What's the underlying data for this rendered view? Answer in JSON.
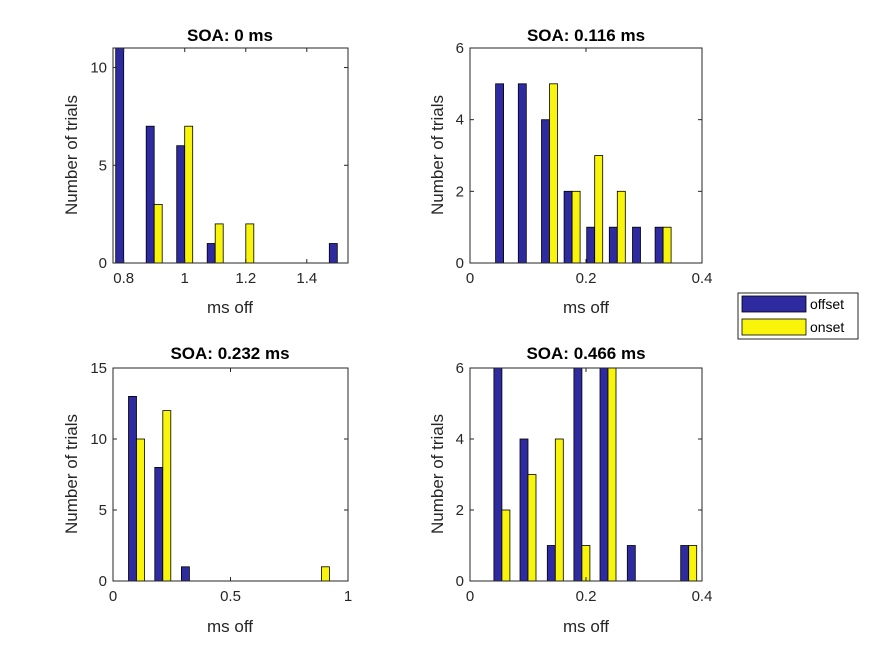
{
  "chart_data": [
    {
      "type": "bar",
      "title": "SOA: 0 ms",
      "xlabel": "ms off",
      "ylabel": "Number of trials",
      "xlim": [
        0.765,
        1.535
      ],
      "ylim": [
        0,
        11
      ],
      "xticks": [
        0.8,
        1,
        1.2,
        1.4
      ],
      "xtick_labels": [
        "0.8",
        "1",
        "1.2",
        "1.4"
      ],
      "yticks": [
        0,
        5,
        10
      ],
      "ytick_labels": [
        "0",
        "5",
        "10"
      ],
      "x": [
        0.8,
        0.9,
        1.0,
        1.1,
        1.2,
        1.3,
        1.4,
        1.5
      ],
      "series": [
        {
          "name": "offset",
          "values": [
            11,
            7,
            6,
            1,
            0,
            0,
            0,
            1
          ]
        },
        {
          "name": "onset",
          "values": [
            0,
            3,
            7,
            2,
            2,
            0,
            0,
            0
          ]
        }
      ]
    },
    {
      "type": "bar",
      "title": "SOA: 0.116 ms",
      "xlabel": "ms off",
      "ylabel": "Number of trials",
      "xlim": [
        0,
        0.4
      ],
      "ylim": [
        0,
        6
      ],
      "xticks": [
        0,
        0.2,
        0.4
      ],
      "xtick_labels": [
        "0",
        "0.2",
        "0.4"
      ],
      "yticks": [
        0,
        2,
        4,
        6
      ],
      "ytick_labels": [
        "0",
        "2",
        "4",
        "6"
      ],
      "x": [
        0.058,
        0.097,
        0.137,
        0.176,
        0.215,
        0.254,
        0.294,
        0.333
      ],
      "series": [
        {
          "name": "offset",
          "values": [
            5,
            5,
            4,
            2,
            1,
            1,
            1,
            1
          ]
        },
        {
          "name": "onset",
          "values": [
            0,
            0,
            5,
            2,
            3,
            2,
            0,
            1
          ]
        }
      ]
    },
    {
      "type": "bar",
      "title": "SOA: 0.232 ms",
      "xlabel": "ms off",
      "ylabel": "Number of trials",
      "xlim": [
        0,
        1
      ],
      "ylim": [
        0,
        15
      ],
      "xticks": [
        0,
        0.5,
        1
      ],
      "xtick_labels": [
        "0",
        "0.5",
        "1"
      ],
      "yticks": [
        0,
        5,
        10,
        15
      ],
      "ytick_labels": [
        "0",
        "5",
        "10",
        "15"
      ],
      "x": [
        0.1,
        0.212,
        0.325,
        0.437,
        0.55,
        0.662,
        0.775,
        0.887
      ],
      "series": [
        {
          "name": "offset",
          "values": [
            13,
            8,
            1,
            0,
            0,
            0,
            0,
            0
          ]
        },
        {
          "name": "onset",
          "values": [
            10,
            12,
            0,
            0,
            0,
            0,
            0,
            1
          ]
        }
      ]
    },
    {
      "type": "bar",
      "title": "SOA: 0.466 ms",
      "xlabel": "ms off",
      "ylabel": "Number of trials",
      "xlim": [
        0,
        0.4
      ],
      "ylim": [
        0,
        6
      ],
      "xticks": [
        0,
        0.2,
        0.4
      ],
      "xtick_labels": [
        "0",
        "0.2",
        "0.4"
      ],
      "yticks": [
        0,
        2,
        4,
        6
      ],
      "ytick_labels": [
        "0",
        "2",
        "4",
        "6"
      ],
      "x": [
        0.055,
        0.1,
        0.147,
        0.193,
        0.238,
        0.285,
        0.33,
        0.377
      ],
      "series": [
        {
          "name": "offset",
          "values": [
            6,
            4,
            1,
            6,
            6,
            1,
            0,
            1
          ]
        },
        {
          "name": "onset",
          "values": [
            2,
            3,
            4,
            1,
            6,
            0,
            0,
            1
          ]
        }
      ]
    }
  ],
  "legend": {
    "position": "right",
    "items": [
      {
        "label": "offset",
        "color": "#2e2aa0"
      },
      {
        "label": "onset",
        "color": "#f8f40a"
      }
    ]
  },
  "colors": {
    "offset": "#2e2aa0",
    "onset": "#f8f40a",
    "bar_edge": "#000000",
    "axis": "#262626"
  }
}
